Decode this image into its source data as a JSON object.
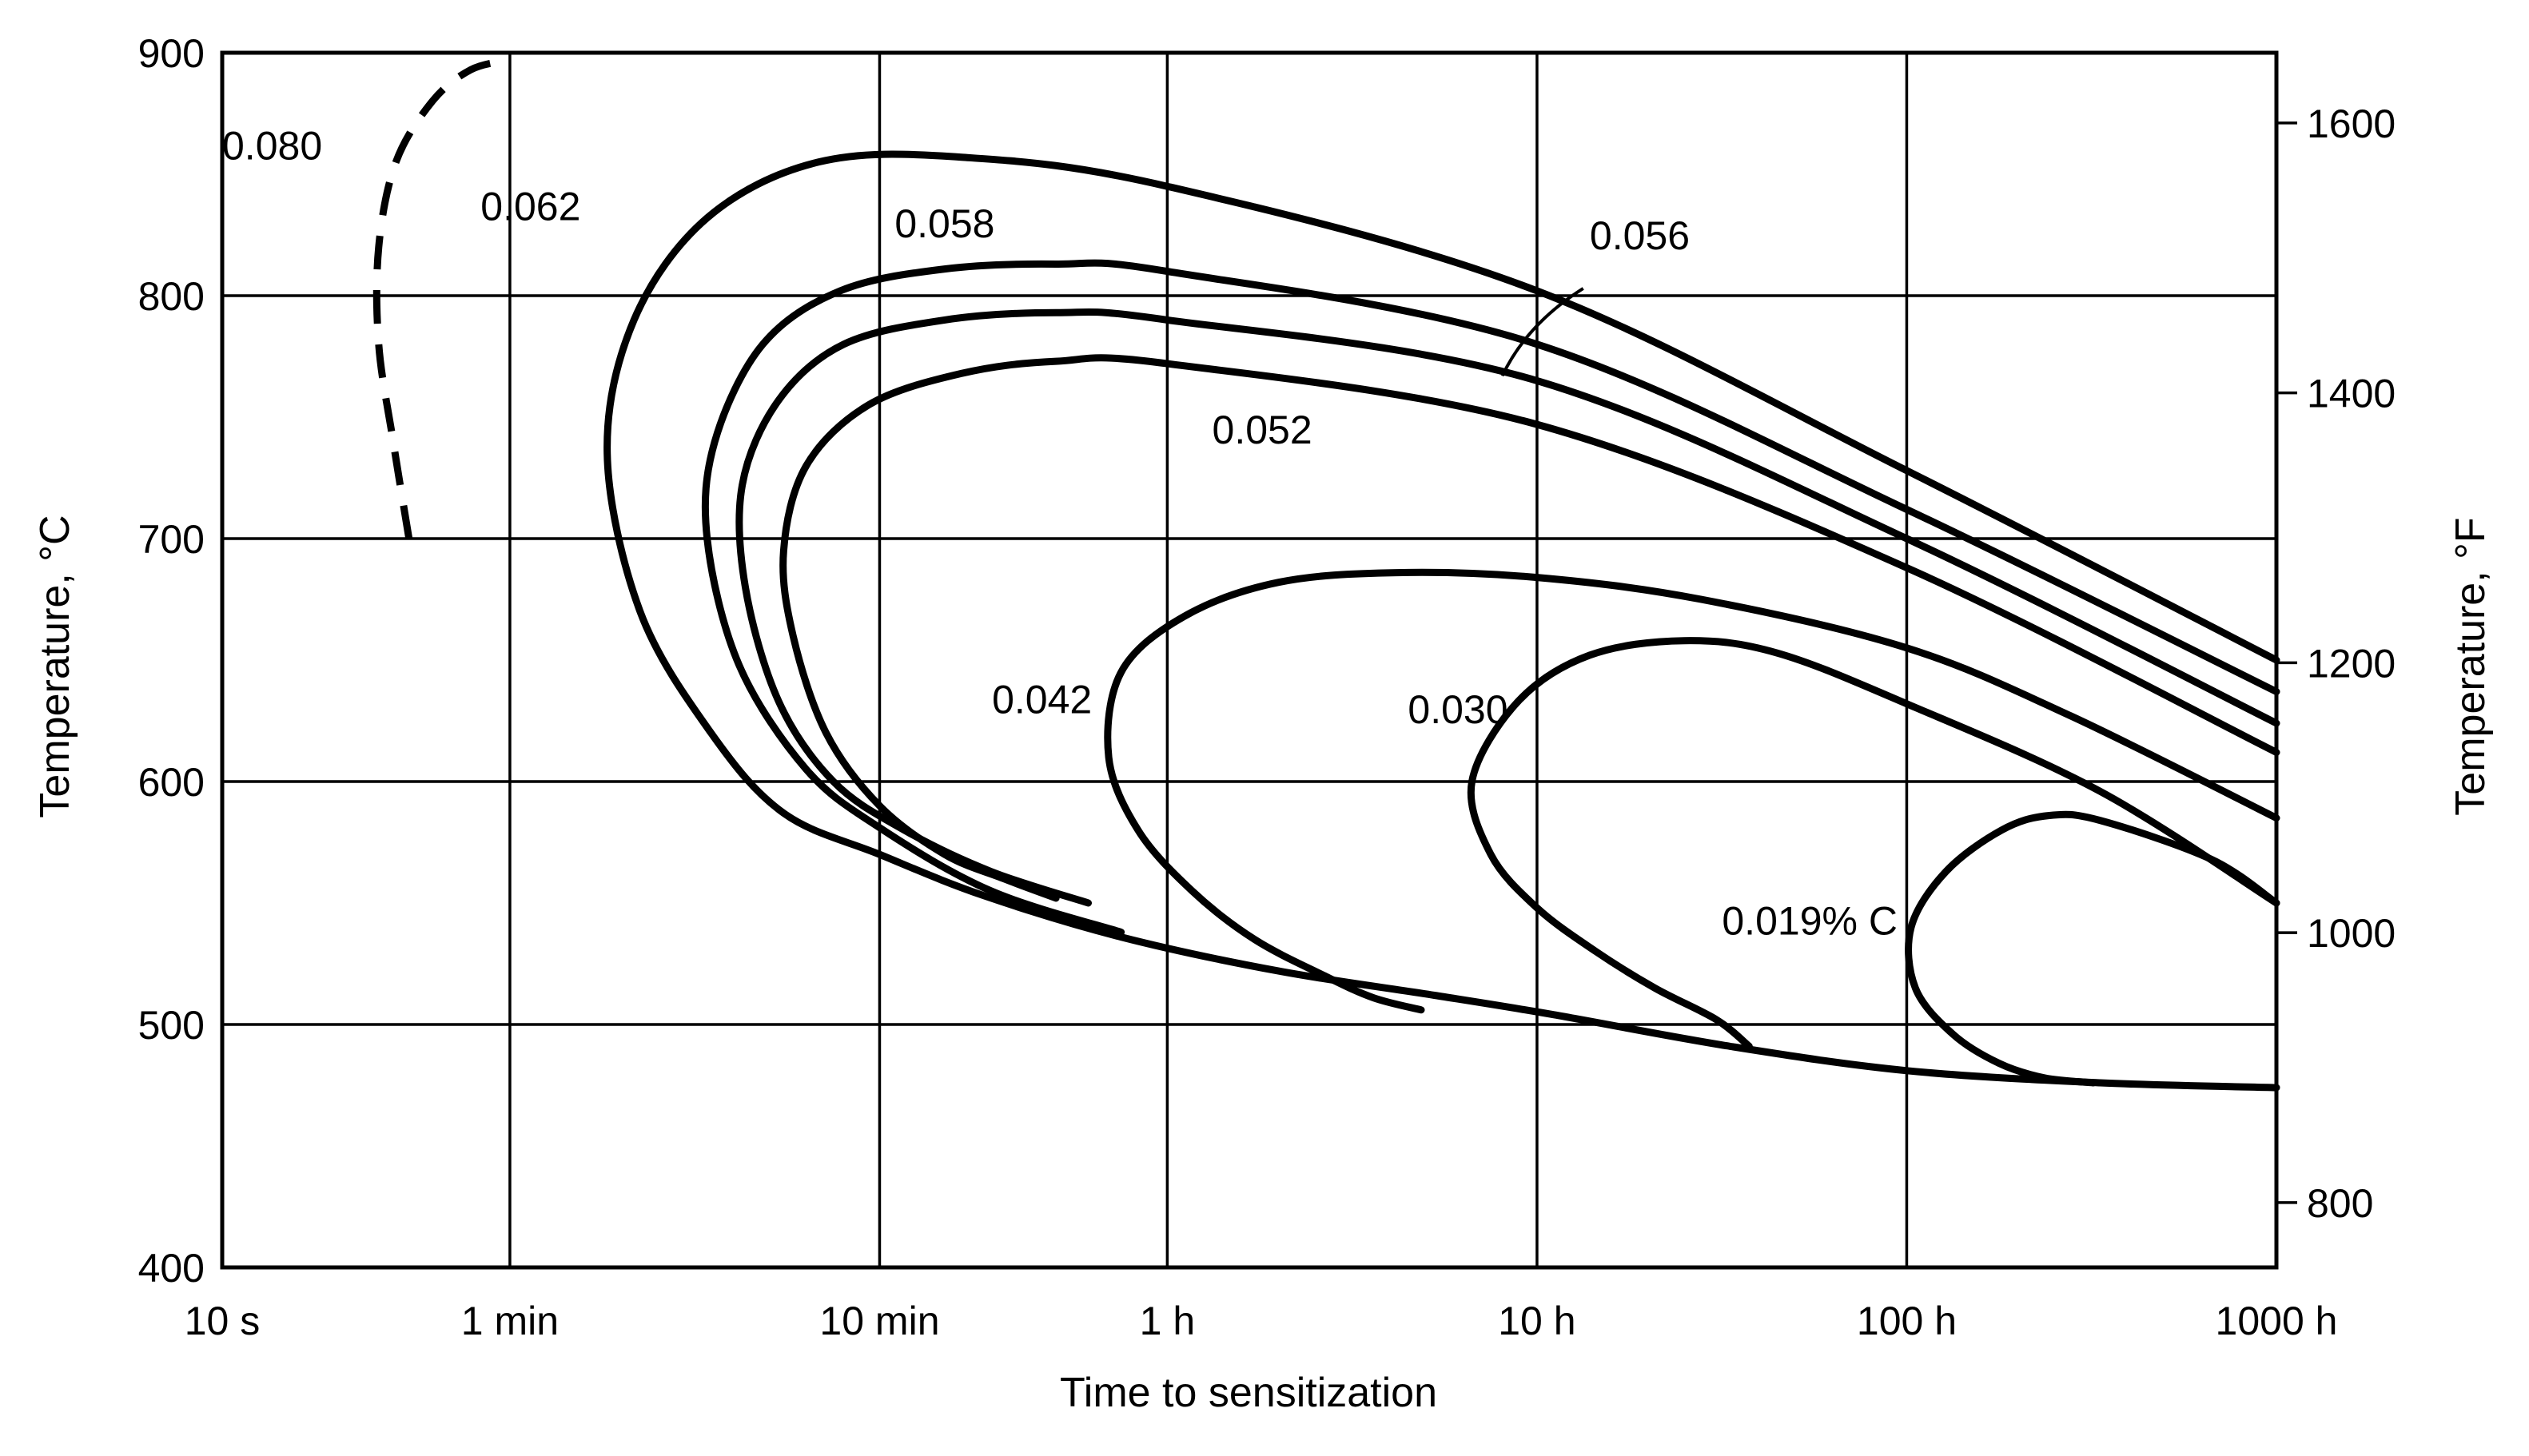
{
  "chart_data": {
    "type": "line",
    "title": "",
    "xlabel": "Time to sensitization",
    "ylabel": "Temperature, °C",
    "y2label": "Temperature, °F",
    "x_scale": "log",
    "x_unit": "s",
    "xlim": [
      10,
      3600000
    ],
    "ylim": [
      400,
      900
    ],
    "grid": true,
    "legend": "none",
    "x_ticks": [
      {
        "value": 10,
        "label": "10 s"
      },
      {
        "value": 60,
        "label": "1 min"
      },
      {
        "value": 600,
        "label": "10 min"
      },
      {
        "value": 3600,
        "label": "1 h"
      },
      {
        "value": 36000,
        "label": "10 h"
      },
      {
        "value": 360000,
        "label": "100 h"
      },
      {
        "value": 3600000,
        "label": "1000 h"
      }
    ],
    "y_ticks": [
      {
        "value": 400,
        "label": "400"
      },
      {
        "value": 500,
        "label": "500"
      },
      {
        "value": 600,
        "label": "600"
      },
      {
        "value": 700,
        "label": "700"
      },
      {
        "value": 800,
        "label": "800"
      },
      {
        "value": 900,
        "label": "900"
      }
    ],
    "y2_ticks": [
      {
        "value": 800,
        "label": "800"
      },
      {
        "value": 1000,
        "label": "1000"
      },
      {
        "value": 1200,
        "label": "1200"
      },
      {
        "value": 1400,
        "label": "1400"
      },
      {
        "value": 1600,
        "label": "1600"
      }
    ],
    "series": [
      {
        "name": "0.080",
        "style": "dashed",
        "label": {
          "text": "0.080",
          "x": 10,
          "y": 862,
          "anchor": "start"
        },
        "points": [
          [
            32,
            700
          ],
          [
            29,
            740
          ],
          [
            26.5,
            780
          ],
          [
            26.5,
            820
          ],
          [
            29.5,
            855
          ],
          [
            37,
            880
          ],
          [
            47,
            893
          ],
          [
            60,
            897
          ]
        ]
      },
      {
        "name": "0.062",
        "style": "solid",
        "label": {
          "text": "0.062",
          "x": 50,
          "y": 837,
          "anchor": "start"
        },
        "points": [
          [
            3600000,
            650
          ],
          [
            360000,
            728
          ],
          [
            36000,
            802
          ],
          [
            3600,
            845
          ],
          [
            1000,
            857
          ],
          [
            410,
            855
          ],
          [
            205,
            832
          ],
          [
            130,
            790
          ],
          [
            110,
            735
          ],
          [
            135,
            670
          ],
          [
            210,
            620
          ],
          [
            330,
            587
          ],
          [
            600,
            570
          ],
          [
            1150,
            553
          ],
          [
            2700,
            536
          ],
          [
            7200,
            522
          ],
          [
            19000,
            512
          ],
          [
            40000,
            504
          ],
          [
            120000,
            491
          ],
          [
            360000,
            481
          ],
          [
            1200000,
            476
          ],
          [
            3600000,
            474
          ]
        ]
      },
      {
        "name": "0.058",
        "style": "solid",
        "label": {
          "text": "0.058",
          "x": 900,
          "y": 830,
          "anchor": "middle"
        },
        "points": [
          [
            3600000,
            637
          ],
          [
            360000,
            712
          ],
          [
            36000,
            780
          ],
          [
            3600,
            810
          ],
          [
            1800,
            813
          ],
          [
            900,
            811
          ],
          [
            470,
            802
          ],
          [
            290,
            780
          ],
          [
            215,
            740
          ],
          [
            205,
            700
          ],
          [
            250,
            648
          ],
          [
            380,
            605
          ],
          [
            600,
            581
          ],
          [
            1200,
            555
          ],
          [
            2700,
            538
          ]
        ]
      },
      {
        "name": "0.056",
        "style": "solid",
        "label": {
          "text": "0.056",
          "x": 50000,
          "y": 825,
          "anchor": "start"
        },
        "points": [
          [
            3600000,
            624
          ],
          [
            360000,
            700
          ],
          [
            36000,
            765
          ],
          [
            3600,
            790
          ],
          [
            1800,
            793
          ],
          [
            900,
            790
          ],
          [
            480,
            780
          ],
          [
            320,
            757
          ],
          [
            255,
            722
          ],
          [
            260,
            680
          ],
          [
            320,
            633
          ],
          [
            450,
            600
          ],
          [
            700,
            580
          ],
          [
            1200,
            563
          ],
          [
            2200,
            550
          ]
        ]
      },
      {
        "name": "0.052",
        "style": "solid",
        "label": {
          "text": "0.052",
          "x": 6500,
          "y": 745,
          "anchor": "middle"
        },
        "points": [
          [
            3600000,
            612
          ],
          [
            360000,
            688
          ],
          [
            36000,
            747
          ],
          [
            3600,
            772
          ],
          [
            1800,
            773
          ],
          [
            1000,
            768
          ],
          [
            560,
            755
          ],
          [
            380,
            730
          ],
          [
            330,
            695
          ],
          [
            350,
            660
          ],
          [
            430,
            620
          ],
          [
            600,
            590
          ],
          [
            900,
            570
          ],
          [
            1300,
            560
          ],
          [
            1800,
            552
          ]
        ]
      },
      {
        "name": "0.042",
        "style": "solid",
        "label": {
          "text": "0.042",
          "x": 1650,
          "y": 634,
          "anchor": "middle"
        },
        "points": [
          [
            3600000,
            585
          ],
          [
            1000000,
            627
          ],
          [
            360000,
            655
          ],
          [
            100000,
            675
          ],
          [
            36000,
            684
          ],
          [
            15000,
            686
          ],
          [
            7200,
            682
          ],
          [
            4000,
            668
          ],
          [
            2700,
            645
          ],
          [
            2500,
            610
          ],
          [
            3000,
            580
          ],
          [
            4200,
            555
          ],
          [
            6200,
            535
          ],
          [
            9600,
            520
          ],
          [
            13000,
            511
          ],
          [
            17500,
            506
          ]
        ]
      },
      {
        "name": "0.030",
        "style": "solid",
        "label": {
          "text": "0.030",
          "x": 22000,
          "y": 630,
          "anchor": "middle"
        },
        "points": [
          [
            3600000,
            550
          ],
          [
            1200000,
            596
          ],
          [
            360000,
            632
          ],
          [
            160000,
            653
          ],
          [
            90000,
            658
          ],
          [
            50000,
            652
          ],
          [
            32000,
            633
          ],
          [
            24000,
            600
          ],
          [
            27000,
            570
          ],
          [
            36000,
            548
          ],
          [
            52000,
            530
          ],
          [
            75000,
            515
          ],
          [
            110000,
            502
          ],
          [
            135000,
            491
          ]
        ]
      },
      {
        "name": "0.019% C",
        "style": "solid",
        "label": {
          "text": "0.019% C",
          "x": 340000,
          "y": 543,
          "anchor": "end"
        },
        "points": [
          [
            3600000,
            550
          ],
          [
            2400000,
            568
          ],
          [
            1200000,
            584
          ],
          [
            870000,
            586
          ],
          [
            650000,
            580
          ],
          [
            460000,
            563
          ],
          [
            370000,
            540
          ],
          [
            380000,
            515
          ],
          [
            480000,
            496
          ],
          [
            640000,
            484
          ],
          [
            850000,
            478
          ],
          [
            1150000,
            476
          ]
        ]
      }
    ],
    "annotations": [
      {
        "type": "leader",
        "for": "0.056",
        "from": [
          48000,
          803
        ],
        "to": [
          29000,
          767
        ]
      }
    ],
    "colors": {
      "background": "#ffffff",
      "ink": "#000000"
    }
  }
}
